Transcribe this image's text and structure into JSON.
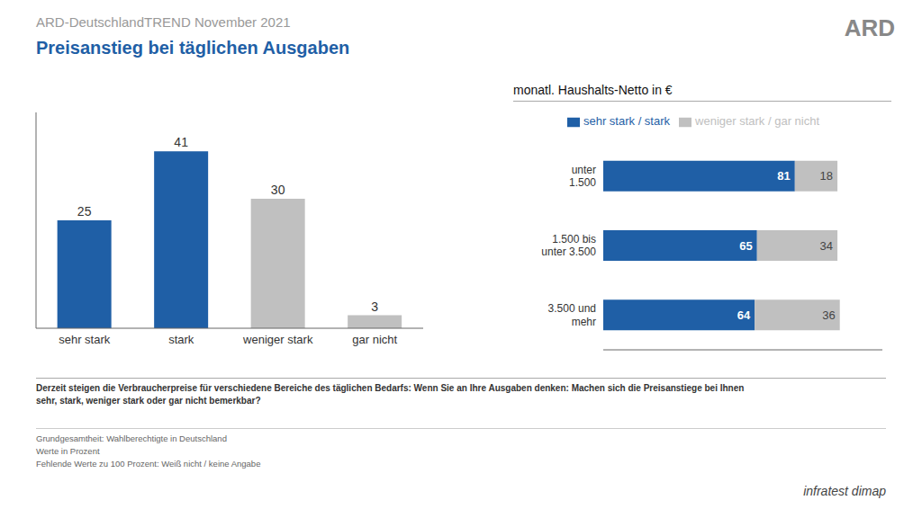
{
  "chart_data": [
    {
      "type": "bar",
      "subtitle": "ARD-DeutschlandTREND November 2021",
      "title": "Preisanstieg bei täglichen Ausgaben",
      "categories": [
        "sehr stark",
        "stark",
        "weniger stark",
        "gar nicht"
      ],
      "values": [
        25,
        41,
        30,
        3
      ],
      "colors": [
        "#1f5fa6",
        "#1f5fa6",
        "#c0c0c0",
        "#c0c0c0"
      ],
      "ylim": [
        0,
        50
      ],
      "tick_labels": "x",
      "data_labels": true,
      "annotations": [
        "Derzeit steigen die Verbraucherpreise für verschiedene Bereiche des täglichen Bedarfs: Wenn Sie an Ihre Ausgaben denken: Machen sich die Preisanstiege bei Ihnen",
        "sehr, stark, weniger stark oder gar nicht bemerkbar?",
        "Grundgesamtheit: Wahlberechtigte in Deutschland",
        "Werte in Prozent",
        "Fehlende Werte zu 100 Prozent: Weiß nicht / keine Angabe",
        "ARD",
        "infratest dimap"
      ]
    },
    {
      "type": "bar",
      "orientation": "horizontal",
      "stacked": true,
      "title": "monatl. Haushalts-Netto in €",
      "categories": [
        "unter\n1.500",
        "1.500 bis\nunter 3.500",
        "3.500 und\nmehr"
      ],
      "series": [
        {
          "name": "sehr stark / stark",
          "color": "#1f5fa6",
          "values": [
            81,
            65,
            64
          ]
        },
        {
          "name": "weniger stark / gar nicht",
          "color": "#c0c0c0",
          "values": [
            18,
            34,
            36
          ]
        }
      ],
      "xlim": [
        0,
        118
      ],
      "tick_labels": "y",
      "data_labels": true
    }
  ]
}
